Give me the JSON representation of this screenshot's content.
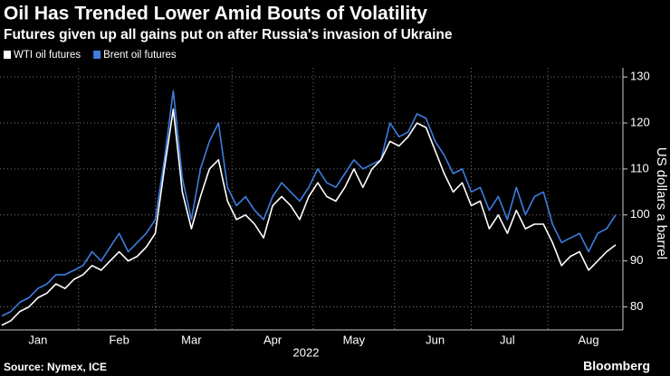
{
  "chart_data": {
    "type": "line",
    "title": "Oil Has Trended Lower Amid Bouts of Volatility",
    "subtitle": "Futures given up all gains put on after Russia's invasion of Ukraine",
    "x_label": "2022",
    "y_label": "US dollars a barrel",
    "source": "Source: Nymex, ICE",
    "brand": "Bloomberg",
    "categories": [
      null,
      null,
      null,
      null,
      "Jan",
      null,
      null,
      null,
      null,
      null,
      null,
      null,
      null,
      "Feb",
      null,
      null,
      null,
      null,
      null,
      null,
      null,
      "Mar",
      null,
      null,
      null,
      null,
      null,
      null,
      null,
      null,
      "Apr",
      null,
      null,
      null,
      null,
      null,
      null,
      null,
      null,
      "May",
      null,
      null,
      null,
      null,
      null,
      null,
      null,
      null,
      "Jun",
      null,
      null,
      null,
      null,
      null,
      null,
      null,
      "Jul",
      null,
      null,
      null,
      null,
      null,
      null,
      null,
      null,
      "Aug",
      null,
      null,
      null
    ],
    "series": [
      {
        "name": "WTI oil futures",
        "color": "#ffffff",
        "values": [
          76,
          77,
          79,
          80,
          82,
          83,
          85,
          84,
          86,
          87,
          89,
          88,
          90,
          92,
          90,
          91,
          93,
          96,
          110,
          123,
          105,
          97,
          104,
          110,
          112,
          103,
          99,
          100,
          98,
          95,
          102,
          104,
          102,
          99,
          104,
          107,
          104,
          103,
          106,
          110,
          106,
          110,
          112,
          116,
          115,
          117,
          120,
          119,
          114,
          109,
          105,
          107,
          102,
          103,
          97,
          100,
          96,
          101,
          97,
          98,
          98,
          94,
          89,
          91,
          92,
          88,
          90,
          92,
          93.5
        ]
      },
      {
        "name": "Brent oil futures",
        "color": "#3e7de0",
        "values": [
          78,
          79,
          81,
          82,
          84,
          85,
          87,
          87,
          88,
          89,
          92,
          90,
          93,
          96,
          92,
          94,
          96,
          99,
          112,
          127,
          108,
          99,
          110,
          116,
          120,
          106,
          102,
          104,
          101,
          99,
          104,
          107,
          105,
          103,
          106,
          110,
          107,
          106,
          109,
          112,
          110,
          111,
          112,
          120,
          117,
          118,
          122,
          121,
          116,
          113,
          109,
          110,
          105,
          106,
          101,
          104,
          99,
          106,
          100,
          104,
          105,
          98,
          94,
          95,
          96,
          92,
          96,
          97,
          100
        ]
      }
    ],
    "ylim": [
      75,
      132
    ],
    "yticks": [
      80,
      90,
      100,
      110,
      120,
      130
    ],
    "grid": true,
    "legend": "top-left"
  }
}
